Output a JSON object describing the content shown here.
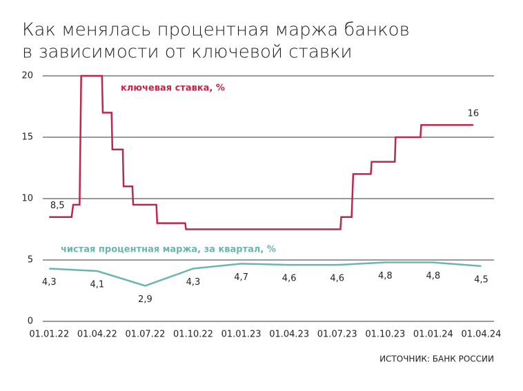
{
  "chart_data": {
    "type": "line",
    "title": [
      "Как менялась процентная маржа банков",
      "в зависимости от ключевой ставки"
    ],
    "source": "ИСТОЧНИК: БАНК РОССИИ",
    "xlim": [
      -0.4,
      27.8
    ],
    "xticks": [
      {
        "value": 0,
        "label": "01.01.22"
      },
      {
        "value": 3,
        "label": "01.04.22"
      },
      {
        "value": 6,
        "label": "01.07.22"
      },
      {
        "value": 9,
        "label": "01.10.22"
      },
      {
        "value": 12,
        "label": "01.01.23"
      },
      {
        "value": 15,
        "label": "01.04.23"
      },
      {
        "value": 18,
        "label": "01.07.23"
      },
      {
        "value": 21,
        "label": "01.10.23"
      },
      {
        "value": 24,
        "label": "01.01.24"
      },
      {
        "value": 27,
        "label": "01.04.24"
      }
    ],
    "ylim": [
      0,
      20
    ],
    "yticks": [
      0,
      5,
      10,
      15,
      20
    ],
    "grid": true,
    "series": [
      {
        "name": "ключевая ставка, %",
        "color": "#c0264a",
        "x": [
          0,
          1.4,
          1.5,
          1.9,
          2.0,
          3.3,
          3.35,
          3.9,
          3.95,
          4.6,
          4.65,
          5.2,
          5.25,
          6.7,
          6.75,
          8.5,
          8.55,
          18.2,
          18.25,
          18.9,
          19.0,
          20.1,
          20.15,
          21.6,
          21.65,
          23.2,
          23.25,
          26.5
        ],
        "values": [
          8.5,
          8.5,
          9.5,
          9.5,
          20,
          20,
          17,
          17,
          14,
          14,
          11,
          11,
          9.5,
          9.5,
          8,
          8,
          7.5,
          7.5,
          8.5,
          8.5,
          12,
          12,
          13,
          13,
          15,
          15,
          16,
          16
        ],
        "value_labels": [
          "8,5",
          null,
          null,
          null,
          null,
          null,
          null,
          null,
          null,
          null,
          null,
          null,
          null,
          null,
          null,
          null,
          null,
          null,
          null,
          null,
          null,
          null,
          null,
          null,
          null,
          null,
          null,
          "16"
        ]
      },
      {
        "name": "чистая процентная маржа, за квартал, %",
        "color": "#6bb5b0",
        "x": [
          0,
          3,
          6,
          9,
          12,
          15,
          18,
          21,
          24,
          27
        ],
        "values": [
          4.3,
          4.1,
          2.9,
          4.3,
          4.7,
          4.6,
          4.6,
          4.8,
          4.8,
          4.5
        ],
        "value_labels": [
          "4,3",
          "4,1",
          "2,9",
          "4,3",
          "4,7",
          "4,6",
          "4,6",
          "4,8",
          "4,8",
          "4,5"
        ]
      }
    ]
  }
}
